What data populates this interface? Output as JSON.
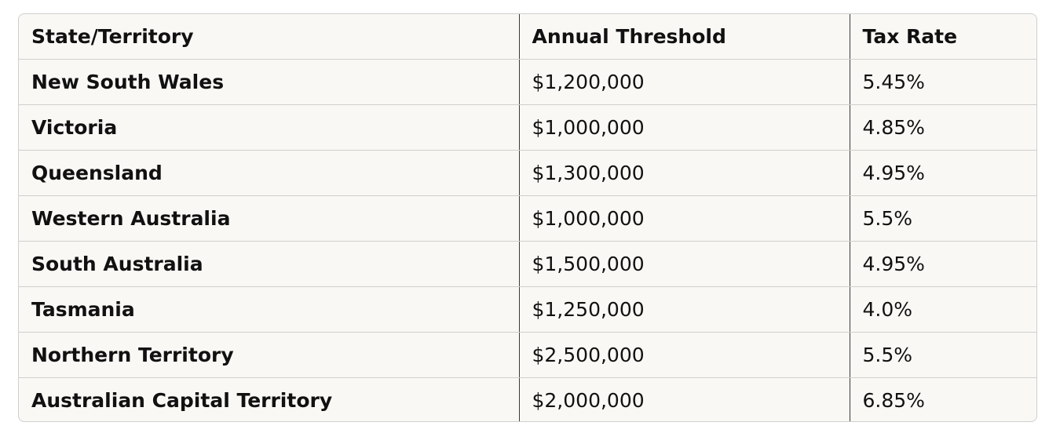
{
  "table": {
    "headers": [
      "State/Territory",
      "Annual Threshold",
      "Tax Rate"
    ],
    "rows": [
      {
        "state": "New South Wales",
        "threshold": "$1,200,000",
        "rate": "5.45%"
      },
      {
        "state": "Victoria",
        "threshold": "$1,000,000",
        "rate": "4.85%"
      },
      {
        "state": "Queensland",
        "threshold": "$1,300,000",
        "rate": "4.95%"
      },
      {
        "state": "Western Australia",
        "threshold": "$1,000,000",
        "rate": "5.5%"
      },
      {
        "state": "South Australia",
        "threshold": "$1,500,000",
        "rate": "4.95%"
      },
      {
        "state": "Tasmania",
        "threshold": "$1,250,000",
        "rate": "4.0%"
      },
      {
        "state": "Northern Territory",
        "threshold": "$2,500,000",
        "rate": "5.5%"
      },
      {
        "state": "Australian Capital Territory",
        "threshold": "$2,000,000",
        "rate": "6.85%"
      }
    ]
  }
}
